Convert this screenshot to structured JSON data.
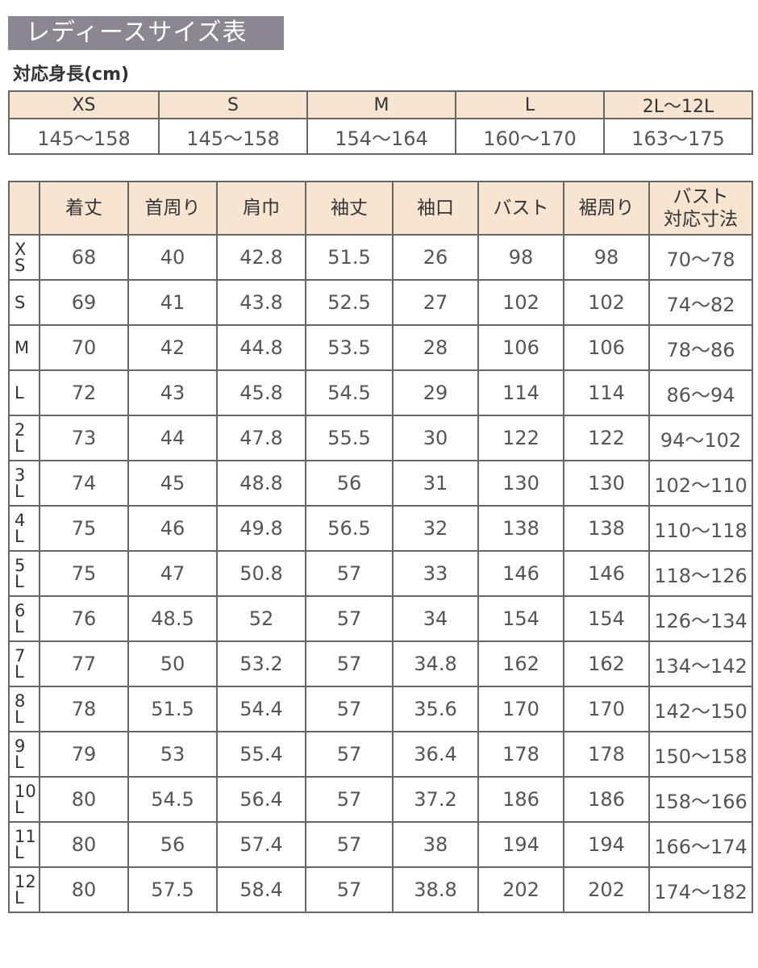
{
  "title": "レディースサイズ表",
  "height_section": {
    "label": "対応身長(cm)",
    "sizes": [
      "XS",
      "S",
      "M",
      "L",
      "2L〜12L"
    ],
    "ranges": [
      "145〜158",
      "145〜158",
      "154〜164",
      "160〜170",
      "163〜175"
    ]
  },
  "size_table": {
    "headers": [
      "着丈",
      "首周り",
      "肩巾",
      "袖丈",
      "袖口",
      "バスト",
      "裾周り",
      [
        "バスト",
        "対応寸法"
      ]
    ],
    "rows": [
      {
        "size": [
          "X",
          "S"
        ],
        "values": [
          "68",
          "40",
          "42.8",
          "51.5",
          "26",
          "98",
          "98",
          "70〜78"
        ]
      },
      {
        "size": [
          "S"
        ],
        "values": [
          "69",
          "41",
          "43.8",
          "52.5",
          "27",
          "102",
          "102",
          "74〜82"
        ]
      },
      {
        "size": [
          "M"
        ],
        "values": [
          "70",
          "42",
          "44.8",
          "53.5",
          "28",
          "106",
          "106",
          "78〜86"
        ]
      },
      {
        "size": [
          "L"
        ],
        "values": [
          "72",
          "43",
          "45.8",
          "54.5",
          "29",
          "114",
          "114",
          "86〜94"
        ]
      },
      {
        "size": [
          "2",
          "L"
        ],
        "values": [
          "73",
          "44",
          "47.8",
          "55.5",
          "30",
          "122",
          "122",
          "94〜102"
        ]
      },
      {
        "size": [
          "3",
          "L"
        ],
        "values": [
          "74",
          "45",
          "48.8",
          "56",
          "31",
          "130",
          "130",
          "102〜110"
        ]
      },
      {
        "size": [
          "4",
          "L"
        ],
        "values": [
          "75",
          "46",
          "49.8",
          "56.5",
          "32",
          "138",
          "138",
          "110〜118"
        ]
      },
      {
        "size": [
          "5",
          "L"
        ],
        "values": [
          "75",
          "47",
          "50.8",
          "57",
          "33",
          "146",
          "146",
          "118〜126"
        ]
      },
      {
        "size": [
          "6",
          "L"
        ],
        "values": [
          "76",
          "48.5",
          "52",
          "57",
          "34",
          "154",
          "154",
          "126〜134"
        ]
      },
      {
        "size": [
          "7",
          "L"
        ],
        "values": [
          "77",
          "50",
          "53.2",
          "57",
          "34.8",
          "162",
          "162",
          "134〜142"
        ]
      },
      {
        "size": [
          "8",
          "L"
        ],
        "values": [
          "78",
          "51.5",
          "54.4",
          "57",
          "35.6",
          "170",
          "170",
          "142〜150"
        ]
      },
      {
        "size": [
          "9",
          "L"
        ],
        "values": [
          "79",
          "53",
          "55.4",
          "57",
          "36.4",
          "178",
          "178",
          "150〜158"
        ]
      },
      {
        "size": [
          "10",
          "L"
        ],
        "values": [
          "80",
          "54.5",
          "56.4",
          "57",
          "37.2",
          "186",
          "186",
          "158〜166"
        ]
      },
      {
        "size": [
          "11",
          "L"
        ],
        "values": [
          "80",
          "56",
          "57.4",
          "57",
          "38",
          "194",
          "194",
          "166〜174"
        ]
      },
      {
        "size": [
          "12",
          "L"
        ],
        "values": [
          "80",
          "57.5",
          "58.4",
          "57",
          "38.8",
          "202",
          "202",
          "174〜182"
        ]
      }
    ]
  },
  "colors": {
    "title_bg": "#8b8791",
    "header_bg": "#f7e5d2",
    "border": "#666666"
  }
}
